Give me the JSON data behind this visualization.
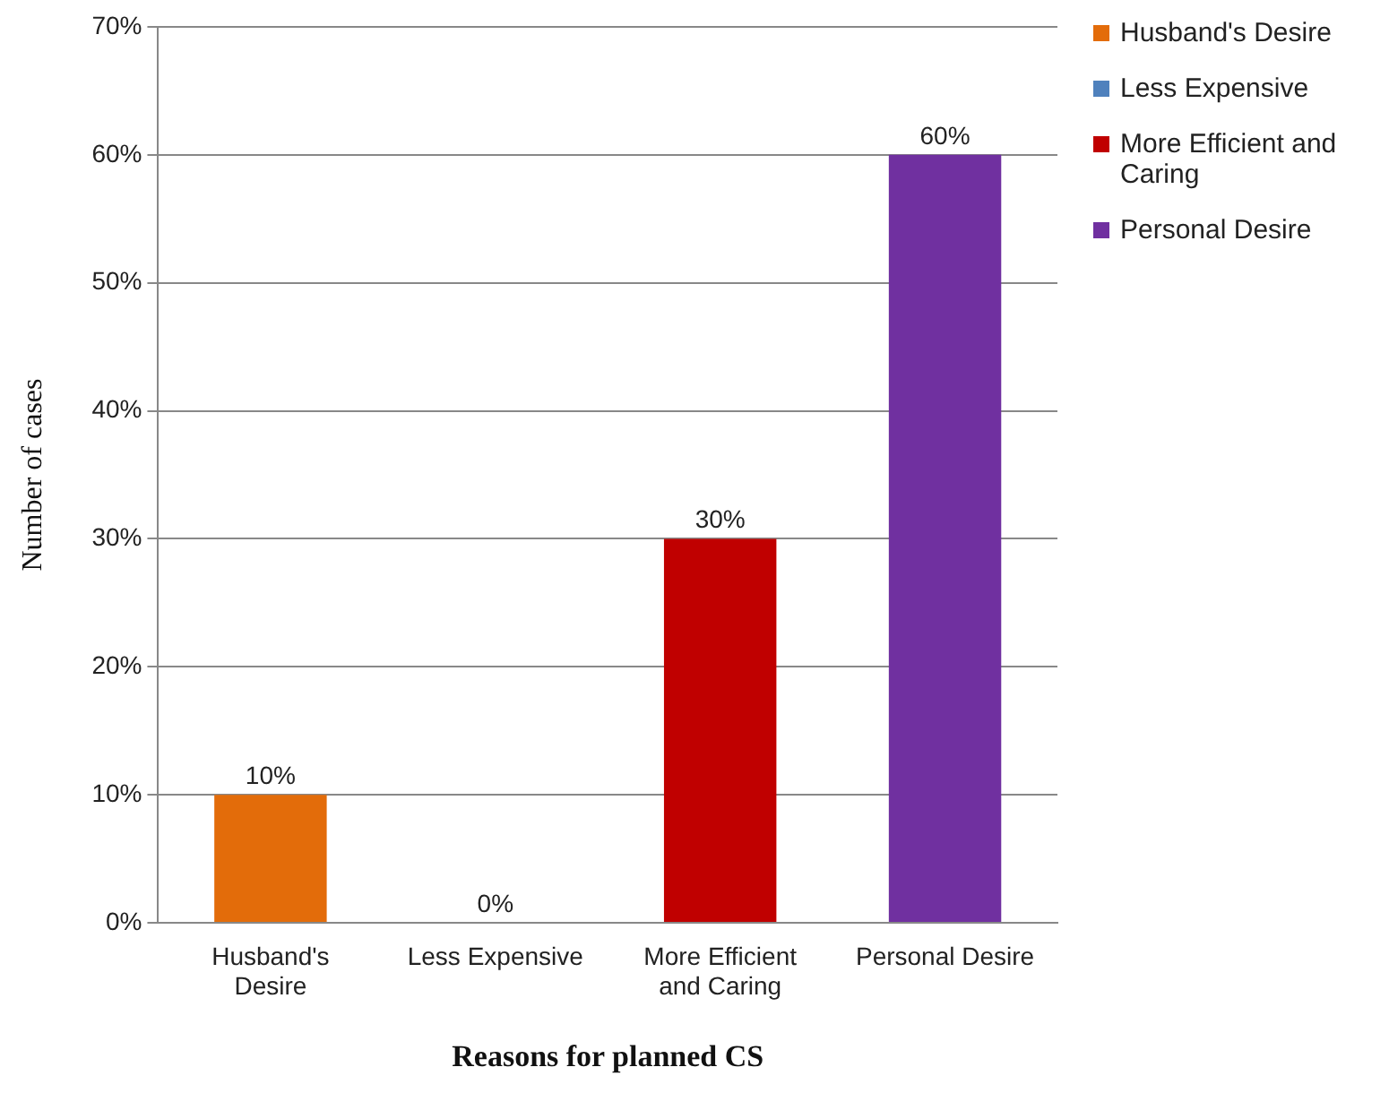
{
  "chart_data": {
    "type": "bar",
    "xlabel": "Reasons for planned CS",
    "ylabel": "Number of cases",
    "categories": [
      "Husband's Desire",
      "Less Expensive",
      "More Efficient and Caring",
      "Personal Desire"
    ],
    "series": [
      {
        "name": "Husband's Desire",
        "color": "#e36c0a",
        "values": [
          10,
          null,
          null,
          null
        ],
        "value_labels": [
          "10%",
          null,
          null,
          null
        ]
      },
      {
        "name": "Less Expensive",
        "color": "#4f81bd",
        "values": [
          null,
          0,
          null,
          null
        ],
        "value_labels": [
          null,
          "0%",
          null,
          null
        ]
      },
      {
        "name": "More Efficient and Caring",
        "color": "#c00000",
        "values": [
          null,
          null,
          30,
          null
        ],
        "value_labels": [
          null,
          null,
          "30%",
          null
        ]
      },
      {
        "name": "Personal Desire",
        "color": "#7030a0",
        "values": [
          null,
          null,
          null,
          60
        ],
        "value_labels": [
          null,
          null,
          null,
          "60%"
        ]
      }
    ],
    "ylim": [
      0,
      70
    ],
    "yticks": [
      {
        "value": 0,
        "label": "0%"
      },
      {
        "value": 10,
        "label": "10%"
      },
      {
        "value": 20,
        "label": "20%"
      },
      {
        "value": 30,
        "label": "30%"
      },
      {
        "value": 40,
        "label": "40%"
      },
      {
        "value": 50,
        "label": "50%"
      },
      {
        "value": 60,
        "label": "60%"
      },
      {
        "value": 70,
        "label": "70%"
      }
    ],
    "grid": "y",
    "legend": "right"
  }
}
